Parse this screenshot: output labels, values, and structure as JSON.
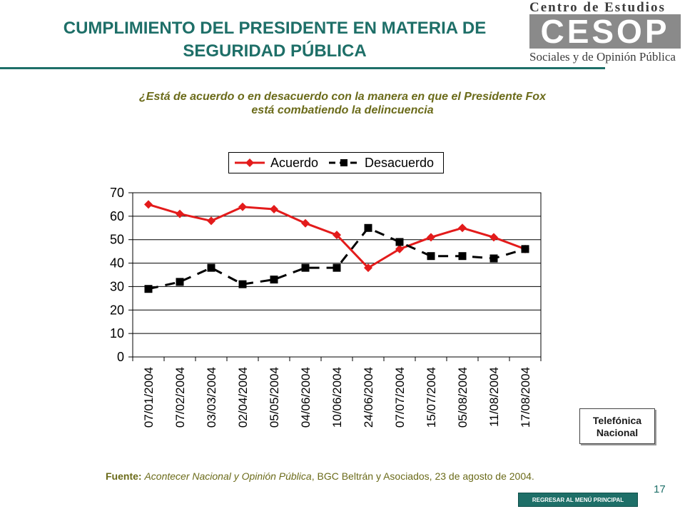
{
  "header": {
    "title_line1": "CUMPLIMIENTO DEL PRESIDENTE EN MATERIA DE",
    "title_line2": "SEGURIDAD PÚBLICA",
    "colors": {
      "accent": "#1e6f68"
    }
  },
  "logo": {
    "top_text": "Centro de Estudios",
    "mark_text": "CESOP",
    "bottom_text": "Sociales y de Opinión Pública"
  },
  "question": {
    "line1": "¿Está de acuerdo o en desacuerdo con la manera en que el Presidente Fox",
    "line2": "está combatiendo la delincuencia"
  },
  "chart_data": {
    "type": "line",
    "categories": [
      "07/01/2004",
      "07/02/2004",
      "03/03/2004",
      "02/04/2004",
      "05/05/2004",
      "04/06/2004",
      "10/06/2004",
      "24/06/2004",
      "07/07/2004",
      "15/07/2004",
      "05/08/2004",
      "11/08/2004",
      "17/08/2004"
    ],
    "series": [
      {
        "name": "Acuerdo",
        "values": [
          65,
          61,
          58,
          64,
          63,
          57,
          52,
          38,
          46,
          51,
          55,
          51,
          46
        ],
        "color": "#e31b1b",
        "marker": "diamond",
        "line": "solid"
      },
      {
        "name": "Desacuerdo",
        "values": [
          29,
          32,
          38,
          31,
          33,
          38,
          38,
          55,
          49,
          43,
          43,
          42,
          46
        ],
        "color": "#000000",
        "marker": "square",
        "line": "dashed"
      }
    ],
    "ylim": [
      0,
      70
    ],
    "yticks": [
      0,
      10,
      20,
      30,
      40,
      50,
      60,
      70
    ],
    "grid": true,
    "legend_position": "top"
  },
  "callout": {
    "line1": "Telefónica",
    "line2": "Nacional"
  },
  "source": {
    "label": "Fuente:",
    "publication": "Acontecer Nacional y Opinión Pública",
    "rest": ", BGC Beltrán y Asociados, 23 de agosto de 2004."
  },
  "page_number": "17",
  "back_button_label": "REGRESAR AL MENÚ PRINCIPAL"
}
